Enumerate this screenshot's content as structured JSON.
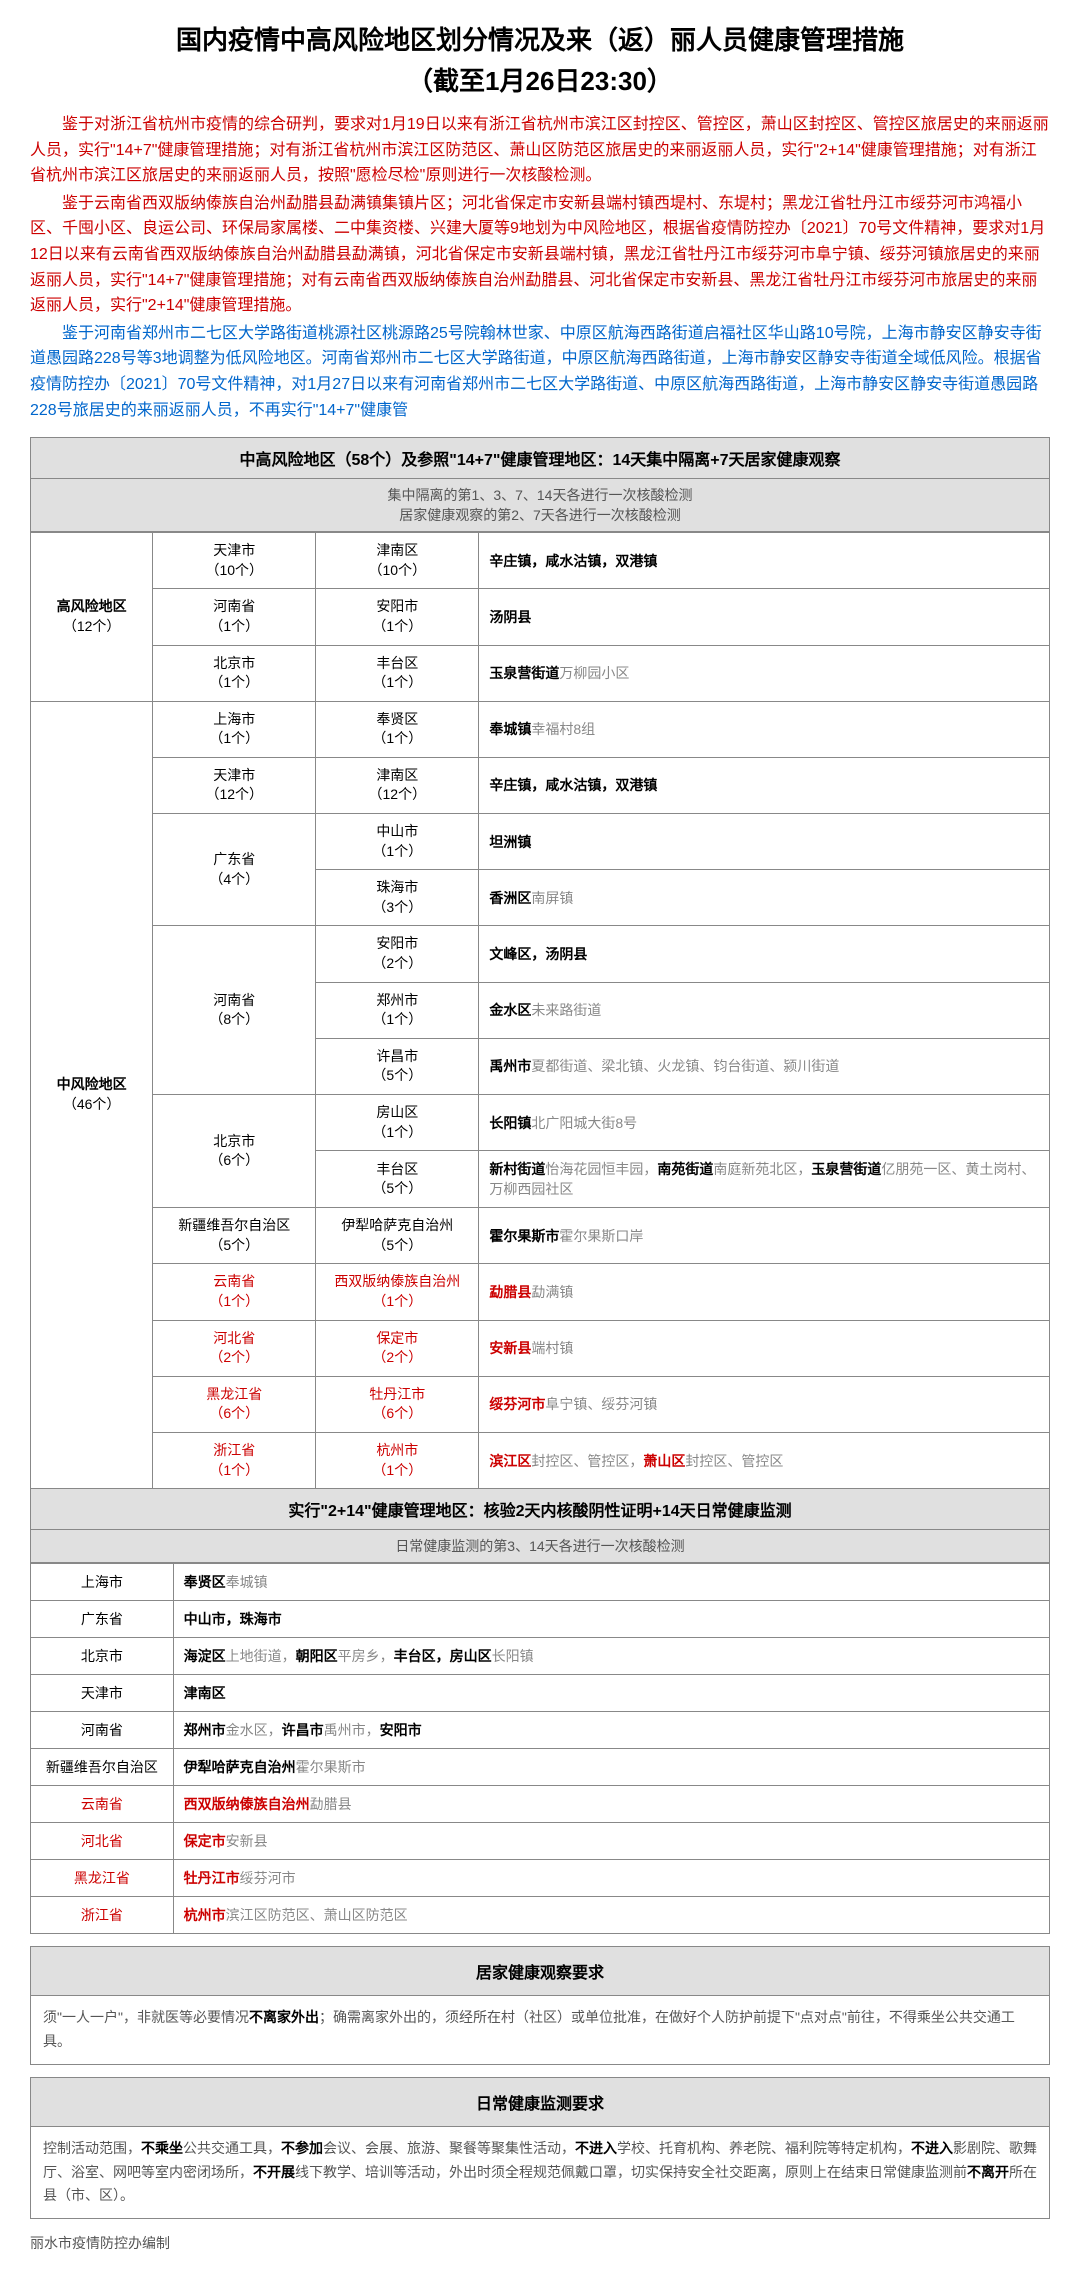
{
  "title": "国内疫情中高风险地区划分情况及来（返）丽人员健康管理措施",
  "subtitle": "（截至1月26日23:30）",
  "para1": "鉴于对浙江省杭州市疫情的综合研判，要求对1月19日以来有浙江省杭州市滨江区封控区、管控区，萧山区封控区、管控区旅居史的来丽返丽人员，实行\"14+7\"健康管理措施；对有浙江省杭州市滨江区防范区、萧山区防范区旅居史的来丽返丽人员，实行\"2+14\"健康管理措施；对有浙江省杭州市滨江区旅居史的来丽返丽人员，按照\"愿检尽检\"原则进行一次核酸检测。",
  "para2": "鉴于云南省西双版纳傣族自治州勐腊县勐满镇集镇片区；河北省保定市安新县端村镇西堤村、东堤村；黑龙江省牡丹江市绥芬河市鸿福小区、千囤小区、良运公司、环保局家属楼、二中集资楼、兴建大厦等9地划为中风险地区，根据省疫情防控办〔2021〕70号文件精神，要求对1月12日以来有云南省西双版纳傣族自治州勐腊县勐满镇，河北省保定市安新县端村镇，黑龙江省牡丹江市绥芬河市阜宁镇、绥芬河镇旅居史的来丽返丽人员，实行\"14+7\"健康管理措施；对有云南省西双版纳傣族自治州勐腊县、河北省保定市安新县、黑龙江省牡丹江市绥芬河市旅居史的来丽返丽人员，实行\"2+14\"健康管理措施。",
  "para3": "鉴于河南省郑州市二七区大学路街道桃源社区桃源路25号院翰林世家、中原区航海西路街道启福社区华山路10号院，上海市静安区静安寺街道愚园路228号等3地调整为低风险地区。河南省郑州市二七区大学路街道，中原区航海西路街道，上海市静安区静安寺街道全域低风险。根据省疫情防控办〔2021〕70号文件精神，对1月27日以来有河南省郑州市二七区大学路街道、中原区航海西路街道，上海市静安区静安寺街道愚园路228号旅居史的来丽返丽人员，不再实行\"14+7\"健康管",
  "sec1_header": "中高风险地区（58个）及参照\"14+7\"健康管理地区：14天集中隔离+7天居家健康观察",
  "sec1_sub1": "集中隔离的第1、3、7、14天各进行一次核酸检测",
  "sec1_sub2": "居家健康观察的第2、7天各进行一次核酸检测",
  "high_label": "高风险地区",
  "high_count": "（12个）",
  "mid_label": "中风险地区",
  "mid_count": "（46个）",
  "high_rows": [
    {
      "prov": "天津市",
      "pcount": "（10个）",
      "city": "津南区",
      "ccount": "（10个）",
      "detail": "辛庄镇，咸水沽镇，双港镇"
    },
    {
      "prov": "河南省",
      "pcount": "（1个）",
      "city": "安阳市",
      "ccount": "（1个）",
      "detail": "汤阴县"
    },
    {
      "prov": "北京市",
      "pcount": "（1个）",
      "city": "丰台区",
      "ccount": "（1个）",
      "detail": "玉泉营街道|万柳园小区"
    }
  ],
  "mid_groups": [
    {
      "prov": "上海市",
      "pcount": "（1个）",
      "red": false,
      "cities": [
        {
          "city": "奉贤区",
          "ccount": "（1个）",
          "detail": "奉城镇|幸福村8组"
        }
      ]
    },
    {
      "prov": "天津市",
      "pcount": "（12个）",
      "red": false,
      "cities": [
        {
          "city": "津南区",
          "ccount": "（12个）",
          "detail": "辛庄镇，咸水沽镇，双港镇"
        }
      ]
    },
    {
      "prov": "广东省",
      "pcount": "（4个）",
      "red": false,
      "cities": [
        {
          "city": "中山市",
          "ccount": "（1个）",
          "detail": "坦洲镇"
        },
        {
          "city": "珠海市",
          "ccount": "（3个）",
          "detail": "香洲区|南屏镇"
        }
      ]
    },
    {
      "prov": "河南省",
      "pcount": "（8个）",
      "red": false,
      "cities": [
        {
          "city": "安阳市",
          "ccount": "（2个）",
          "detail": "文峰区，汤阴县"
        },
        {
          "city": "郑州市",
          "ccount": "（1个）",
          "detail": "金水区|未来路街道"
        },
        {
          "city": "许昌市",
          "ccount": "（5个）",
          "detail": "禹州市|夏都街道、梁北镇、火龙镇、钧台街道、颍川街道"
        }
      ]
    },
    {
      "prov": "北京市",
      "pcount": "（6个）",
      "red": false,
      "cities": [
        {
          "city": "房山区",
          "ccount": "（1个）",
          "detail": "长阳镇|北广阳城大街8号"
        },
        {
          "city": "丰台区",
          "ccount": "（5个）",
          "detail": "新村街道|怡海花园恒丰园，|南苑街道|南庭新苑北区，|玉泉营街道|亿朋苑一区、黄土岗村、万柳西园社区"
        }
      ]
    },
    {
      "prov": "新疆维吾尔自治区",
      "pcount": "（5个）",
      "red": false,
      "cities": [
        {
          "city": "伊犁哈萨克自治州",
          "ccount": "（5个）",
          "detail": "霍尔果斯市|霍尔果斯口岸"
        }
      ]
    },
    {
      "prov": "云南省",
      "pcount": "（1个）",
      "red": true,
      "cities": [
        {
          "city": "西双版纳傣族自治州",
          "ccount": "（1个）",
          "detail": "勐腊县|勐满镇"
        }
      ]
    },
    {
      "prov": "河北省",
      "pcount": "（2个）",
      "red": true,
      "cities": [
        {
          "city": "保定市",
          "ccount": "（2个）",
          "detail": "安新县|端村镇"
        }
      ]
    },
    {
      "prov": "黑龙江省",
      "pcount": "（6个）",
      "red": true,
      "cities": [
        {
          "city": "牡丹江市",
          "ccount": "（6个）",
          "detail": "绥芬河市|阜宁镇、绥芬河镇"
        }
      ]
    },
    {
      "prov": "浙江省",
      "pcount": "（1个）",
      "red": true,
      "cities": [
        {
          "city": "杭州市",
          "ccount": "（1个）",
          "detail": "滨江区|封控区、管控区，|萧山区|封控区、管控区"
        }
      ]
    }
  ],
  "sec2_header": "实行\"2+14\"健康管理地区：核验2天内核酸阴性证明+14天日常健康监测",
  "sec2_sub": "日常健康监测的第3、14天各进行一次核酸检测",
  "sec2_rows": [
    {
      "prov": "上海市",
      "red": false,
      "detail": "奉贤区|奉城镇"
    },
    {
      "prov": "广东省",
      "red": false,
      "detail": "中山市，珠海市"
    },
    {
      "prov": "北京市",
      "red": false,
      "detail": "海淀区|上地街道，|朝阳区|平房乡，|丰台区，房山区|长阳镇"
    },
    {
      "prov": "天津市",
      "red": false,
      "detail": "津南区"
    },
    {
      "prov": "河南省",
      "red": false,
      "detail": "郑州市|金水区，|许昌市|禹州市，|安阳市"
    },
    {
      "prov": "新疆维吾尔自治区",
      "red": false,
      "detail": "伊犁哈萨克自治州|霍尔果斯市"
    },
    {
      "prov": "云南省",
      "red": true,
      "detail": "西双版纳傣族自治州|勐腊县"
    },
    {
      "prov": "河北省",
      "red": true,
      "detail": "保定市|安新县"
    },
    {
      "prov": "黑龙江省",
      "red": true,
      "detail": "牡丹江市|绥芬河市"
    },
    {
      "prov": "浙江省",
      "red": true,
      "detail": "杭州市|滨江区防范区、萧山区防范区"
    }
  ],
  "req1_title": "居家健康观察要求",
  "req1_body": "须\"一人一户\"，非就医等必要情况|不离家外出|；确需离家外出的，须经所在村（社区）或单位批准，在做好个人防护前提下\"点对点\"前往，不得乘坐公共交通工具。",
  "req2_title": "日常健康监测要求",
  "req2_body": "控制活动范围，|不乘坐|公共交通工具，|不参加|会议、会展、旅游、聚餐等聚集性活动，|不进入|学校、托育机构、养老院、福利院等特定机构，|不进入|影剧院、歌舞厅、浴室、网吧等室内密闭场所，|不开展|线下教学、培训等活动，外出时须全程规范佩戴口罩，切实保持安全社交距离，原则上在结束日常健康监测前|不离开|所在县（市、区）。",
  "footer": "丽水市疫情防控办编制"
}
